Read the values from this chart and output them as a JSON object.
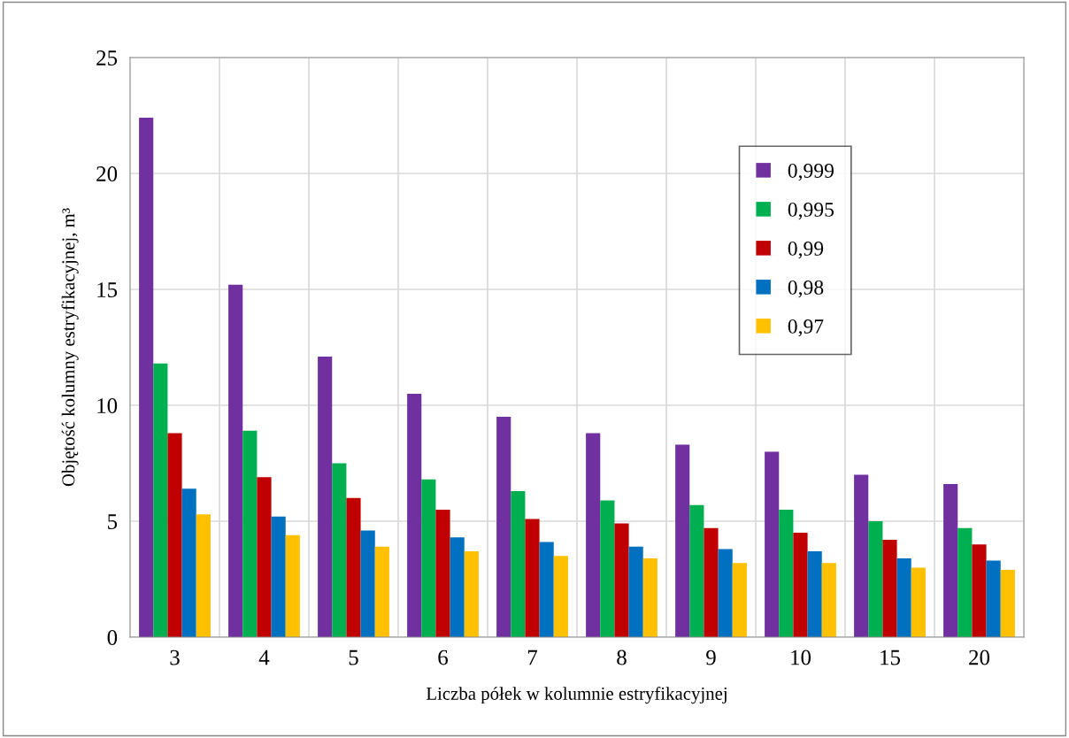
{
  "chart_data": {
    "type": "bar",
    "xlabel": "Liczba półek w kolumnie estryfikacyjnej",
    "ylabel": "Objętość kolumny estryfikacyjnej, m³",
    "categories": [
      "3",
      "4",
      "5",
      "6",
      "7",
      "8",
      "9",
      "10",
      "15",
      "20"
    ],
    "series": [
      {
        "name": "0,999",
        "color": "#7030a0",
        "values": [
          22.4,
          15.2,
          12.1,
          10.5,
          9.5,
          8.8,
          8.3,
          8.0,
          7.0,
          6.6
        ]
      },
      {
        "name": "0,995",
        "color": "#00b050",
        "values": [
          11.8,
          8.9,
          7.5,
          6.8,
          6.3,
          5.9,
          5.7,
          5.5,
          5.0,
          4.7
        ]
      },
      {
        "name": "0,99",
        "color": "#c00000",
        "values": [
          8.8,
          6.9,
          6.0,
          5.5,
          5.1,
          4.9,
          4.7,
          4.5,
          4.2,
          4.0
        ]
      },
      {
        "name": "0,98",
        "color": "#0070c0",
        "values": [
          6.4,
          5.2,
          4.6,
          4.3,
          4.1,
          3.9,
          3.8,
          3.7,
          3.4,
          3.3
        ]
      },
      {
        "name": "0,97",
        "color": "#ffc000",
        "values": [
          5.3,
          4.4,
          3.9,
          3.7,
          3.5,
          3.4,
          3.2,
          3.2,
          3.0,
          2.9
        ]
      }
    ],
    "ylim": [
      0,
      25
    ],
    "yticks": [
      0,
      5,
      10,
      15,
      20,
      25
    ],
    "grid": true,
    "legend": "top right"
  }
}
